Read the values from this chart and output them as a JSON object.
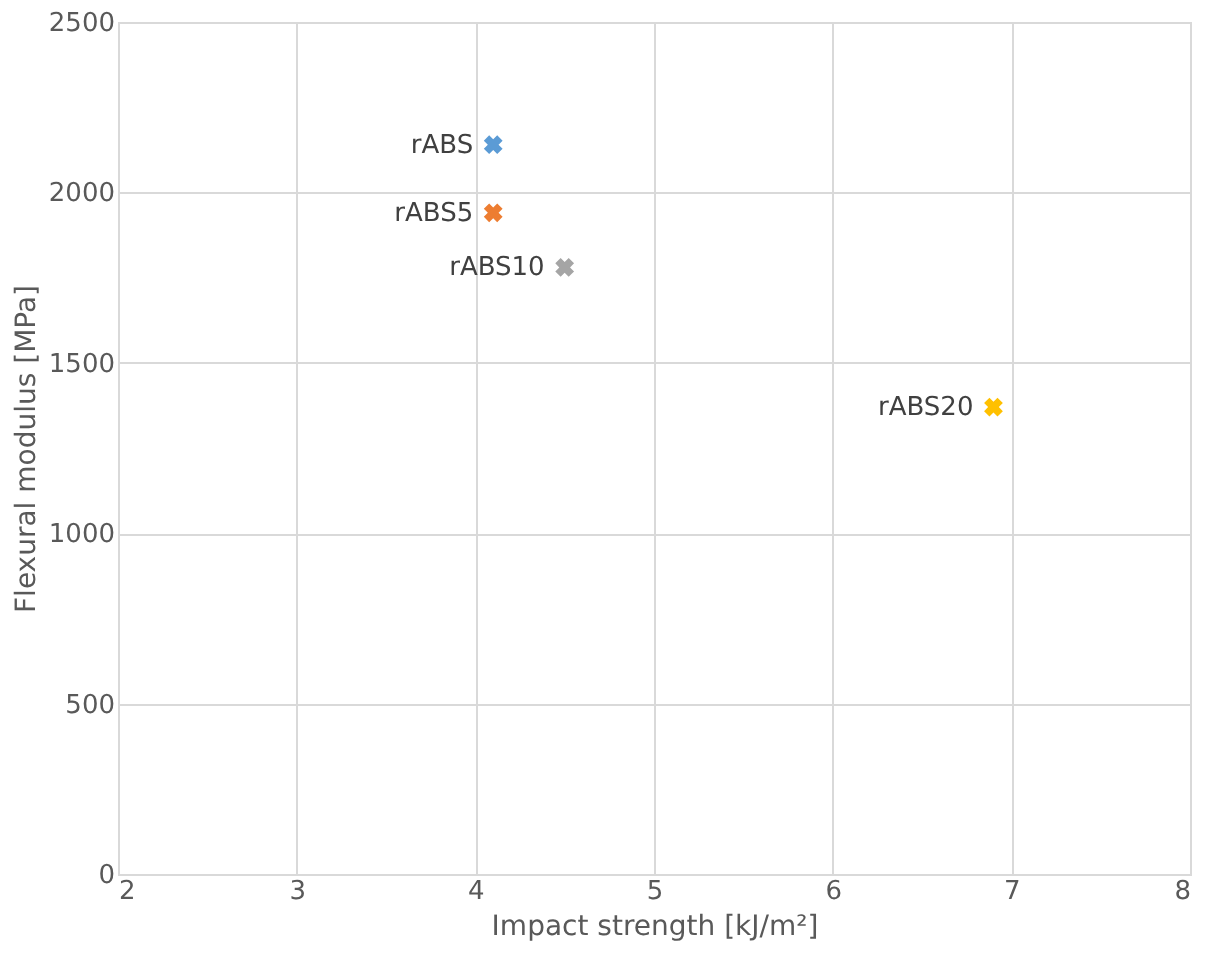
{
  "chart_data": {
    "type": "scatter",
    "xlabel": "Impact strength [kJ/m²]",
    "ylabel": "Flexural modulus [MPa]",
    "series": [
      {
        "name": "rABS",
        "color": "#5b9bd5",
        "x": [
          4.1
        ],
        "values": [
          2140
        ]
      },
      {
        "name": "rABS5",
        "color": "#ed7d31",
        "x": [
          4.1
        ],
        "values": [
          1940
        ]
      },
      {
        "name": "rABS10",
        "color": "#a5a5a5",
        "x": [
          4.5
        ],
        "values": [
          1780
        ]
      },
      {
        "name": "rABS20",
        "color": "#ffc000",
        "x": [
          6.9
        ],
        "values": [
          1370
        ]
      }
    ],
    "xlim": [
      2,
      8
    ],
    "xticks": [
      2,
      3,
      4,
      5,
      6,
      7,
      8
    ],
    "ylim": [
      0,
      2500
    ],
    "yticks": [
      0,
      500,
      1000,
      1500,
      2000,
      2500
    ],
    "grid": true,
    "legend": false,
    "marker": "cross"
  }
}
